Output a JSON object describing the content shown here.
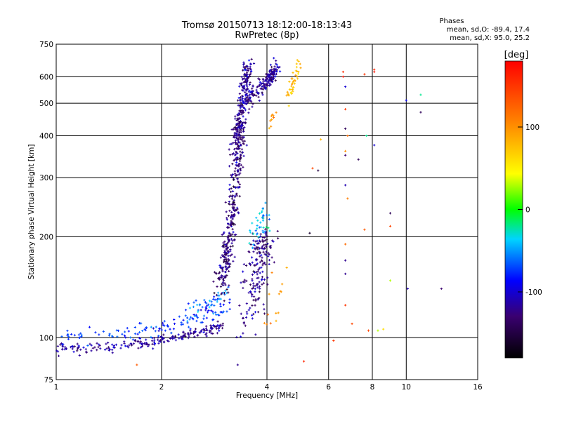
{
  "chart_data": {
    "type": "scatter",
    "title": "Tromsø 20150713 18:12:00-18:13:43",
    "subtitle": "RwPretec (8p)",
    "xlabel": "Frequency [MHz]",
    "ylabel": "Stationary phase Virtual Height [km]",
    "x_scale": "log",
    "y_scale": "log",
    "xlim": [
      1,
      16
    ],
    "ylim": [
      75,
      750
    ],
    "x_ticks": [
      "1",
      "2",
      "4",
      "6",
      "8",
      "10",
      "16"
    ],
    "x_tick_values": [
      1,
      2,
      4,
      6,
      8,
      10,
      16
    ],
    "y_ticks": [
      "75",
      "100",
      "200",
      "300",
      "400",
      "500",
      "600",
      "750"
    ],
    "y_tick_values": [
      75,
      100,
      200,
      300,
      400,
      500,
      600,
      750
    ],
    "grid": true,
    "phases_info": {
      "title": "Phases",
      "line_o": "mean, sd,O: -89.4, 17.4",
      "line_x": "mean, sd,X:  95.0, 25.2"
    },
    "colorbar": {
      "label": "[deg]",
      "range": [
        -180,
        180
      ],
      "ticks": [
        "100",
        "0",
        "-100"
      ],
      "tick_values": [
        100,
        0,
        -100
      ],
      "colormap": "rainbow"
    },
    "clusters": [
      {
        "points": [
          [
            1.0,
            93
          ],
          [
            1.05,
            93
          ],
          [
            1.1,
            93
          ],
          [
            1.2,
            93.5
          ],
          [
            1.3,
            94
          ],
          [
            1.4,
            94
          ],
          [
            1.5,
            94.5
          ],
          [
            1.6,
            95
          ],
          [
            1.7,
            96
          ],
          [
            1.8,
            97
          ],
          [
            1.9,
            97.5
          ],
          [
            2.0,
            98
          ],
          [
            2.1,
            99
          ],
          [
            2.2,
            100
          ],
          [
            2.3,
            101
          ],
          [
            2.4,
            102
          ],
          [
            2.5,
            103
          ],
          [
            2.6,
            104
          ],
          [
            2.7,
            105
          ],
          [
            2.8,
            106
          ],
          [
            2.9,
            108
          ],
          [
            3.0,
            110
          ]
        ],
        "phase": -115,
        "count": 220,
        "sx": 0.03,
        "sy": 1.8
      },
      {
        "points": [
          [
            1.05,
            101
          ],
          [
            1.2,
            102
          ],
          [
            1.4,
            103
          ],
          [
            1.6,
            104
          ],
          [
            1.8,
            106
          ],
          [
            2.0,
            108
          ],
          [
            2.2,
            110
          ],
          [
            2.4,
            112
          ],
          [
            2.6,
            115
          ],
          [
            2.8,
            118
          ],
          [
            3.0,
            122
          ],
          [
            3.2,
            128
          ]
        ],
        "phase": -75,
        "count": 120,
        "sx": 0.04,
        "sy": 3
      },
      {
        "points": [
          [
            2.4,
            124
          ],
          [
            2.6,
            125
          ],
          [
            2.8,
            127
          ],
          [
            3.0,
            135
          ],
          [
            3.1,
            145
          ]
        ],
        "phase": -60,
        "count": 40,
        "sx": 0.03,
        "sy": 3
      },
      {
        "points": [
          [
            2.9,
            140
          ],
          [
            3.0,
            155
          ],
          [
            3.05,
            170
          ],
          [
            3.1,
            190
          ],
          [
            3.15,
            210
          ],
          [
            3.2,
            240
          ],
          [
            3.25,
            280
          ],
          [
            3.3,
            320
          ],
          [
            3.35,
            380
          ],
          [
            3.4,
            450
          ]
        ],
        "phase": -128,
        "count": 350,
        "sx": 0.06,
        "sy": 8
      },
      {
        "points": [
          [
            3.2,
            350
          ],
          [
            3.3,
            400
          ],
          [
            3.35,
            450
          ],
          [
            3.4,
            500
          ],
          [
            3.45,
            560
          ],
          [
            3.5,
            620
          ],
          [
            3.55,
            650
          ]
        ],
        "phase": -118,
        "count": 220,
        "sx": 0.06,
        "sy": 20
      },
      {
        "points": [
          [
            3.5,
            110
          ],
          [
            3.6,
            130
          ],
          [
            3.7,
            150
          ],
          [
            3.8,
            170
          ],
          [
            3.9,
            190
          ],
          [
            4.0,
            200
          ]
        ],
        "phase": -122,
        "count": 180,
        "sx": 0.15,
        "sy": 8
      },
      {
        "points": [
          [
            3.5,
            500
          ],
          [
            3.7,
            540
          ],
          [
            3.9,
            560
          ],
          [
            4.0,
            580
          ],
          [
            4.1,
            600
          ],
          [
            4.2,
            620
          ],
          [
            4.3,
            650
          ]
        ],
        "phase": -118,
        "count": 180,
        "sx": 0.05,
        "sy": 15
      },
      {
        "points": [
          [
            3.6,
            180
          ],
          [
            3.7,
            200
          ],
          [
            3.8,
            215
          ],
          [
            3.9,
            225
          ],
          [
            4.0,
            240
          ]
        ],
        "phase": -40,
        "count": 40,
        "sx": 0.1,
        "sy": 10
      },
      {
        "points": [
          [
            4.6,
            520
          ],
          [
            4.7,
            550
          ],
          [
            4.8,
            590
          ],
          [
            4.9,
            630
          ],
          [
            5.0,
            660
          ]
        ],
        "phase": 80,
        "count": 40,
        "sx": 0.03,
        "sy": 15
      },
      {
        "points": [
          [
            4.1,
            420
          ],
          [
            4.2,
            460
          ],
          [
            4.3,
            480
          ]
        ],
        "phase": 100,
        "count": 10,
        "sx": 0.05,
        "sy": 10
      },
      {
        "points": [
          [
            4.0,
            110
          ],
          [
            3.9,
            115
          ],
          [
            4.2,
            165
          ],
          [
            4.3,
            170
          ],
          [
            4.4,
            130
          ],
          [
            4.0,
            85
          ],
          [
            4.7,
            185
          ]
        ],
        "phase": 95,
        "count": 14,
        "sx": 0.05,
        "sy": 3
      }
    ],
    "sparse_points": [
      {
        "x": 6.6,
        "y": 620,
        "phase": 155
      },
      {
        "x": 6.6,
        "y": 600,
        "phase": 170
      },
      {
        "x": 6.7,
        "y": 560,
        "phase": -100
      },
      {
        "x": 6.7,
        "y": 480,
        "phase": 150
      },
      {
        "x": 6.7,
        "y": 420,
        "phase": -140
      },
      {
        "x": 6.8,
        "y": 400,
        "phase": 120
      },
      {
        "x": 6.7,
        "y": 360,
        "phase": 100
      },
      {
        "x": 6.7,
        "y": 350,
        "phase": -130
      },
      {
        "x": 6.7,
        "y": 285,
        "phase": -110
      },
      {
        "x": 6.8,
        "y": 260,
        "phase": 110
      },
      {
        "x": 6.7,
        "y": 190,
        "phase": 120
      },
      {
        "x": 6.7,
        "y": 170,
        "phase": -120
      },
      {
        "x": 6.7,
        "y": 155,
        "phase": -120
      },
      {
        "x": 6.7,
        "y": 125,
        "phase": 150
      },
      {
        "x": 7.0,
        "y": 110,
        "phase": 140
      },
      {
        "x": 7.3,
        "y": 340,
        "phase": -140
      },
      {
        "x": 7.6,
        "y": 610,
        "phase": 150
      },
      {
        "x": 7.6,
        "y": 210,
        "phase": 130
      },
      {
        "x": 7.7,
        "y": 400,
        "phase": -20
      },
      {
        "x": 7.8,
        "y": 105,
        "phase": 140
      },
      {
        "x": 8.1,
        "y": 630,
        "phase": 160
      },
      {
        "x": 8.1,
        "y": 620,
        "phase": 170
      },
      {
        "x": 8.1,
        "y": 375,
        "phase": -100
      },
      {
        "x": 8.3,
        "y": 105,
        "phase": 30
      },
      {
        "x": 8.6,
        "y": 106,
        "phase": 60
      },
      {
        "x": 9.0,
        "y": 235,
        "phase": -140
      },
      {
        "x": 9.0,
        "y": 215,
        "phase": 140
      },
      {
        "x": 9.0,
        "y": 148,
        "phase": 30
      },
      {
        "x": 10.0,
        "y": 510,
        "phase": -90
      },
      {
        "x": 10.1,
        "y": 140,
        "phase": -110
      },
      {
        "x": 11.0,
        "y": 530,
        "phase": -20
      },
      {
        "x": 11.0,
        "y": 470,
        "phase": -140
      },
      {
        "x": 12.6,
        "y": 140,
        "phase": -130
      },
      {
        "x": 5.7,
        "y": 390,
        "phase": 80
      },
      {
        "x": 5.4,
        "y": 320,
        "phase": 140
      },
      {
        "x": 5.6,
        "y": 315,
        "phase": -150
      },
      {
        "x": 5.3,
        "y": 205,
        "phase": -160
      },
      {
        "x": 5.1,
        "y": 85,
        "phase": 160
      },
      {
        "x": 6.2,
        "y": 98,
        "phase": 150
      },
      {
        "x": 3.3,
        "y": 83,
        "phase": -120
      },
      {
        "x": 1.7,
        "y": 83,
        "phase": 130
      }
    ]
  }
}
